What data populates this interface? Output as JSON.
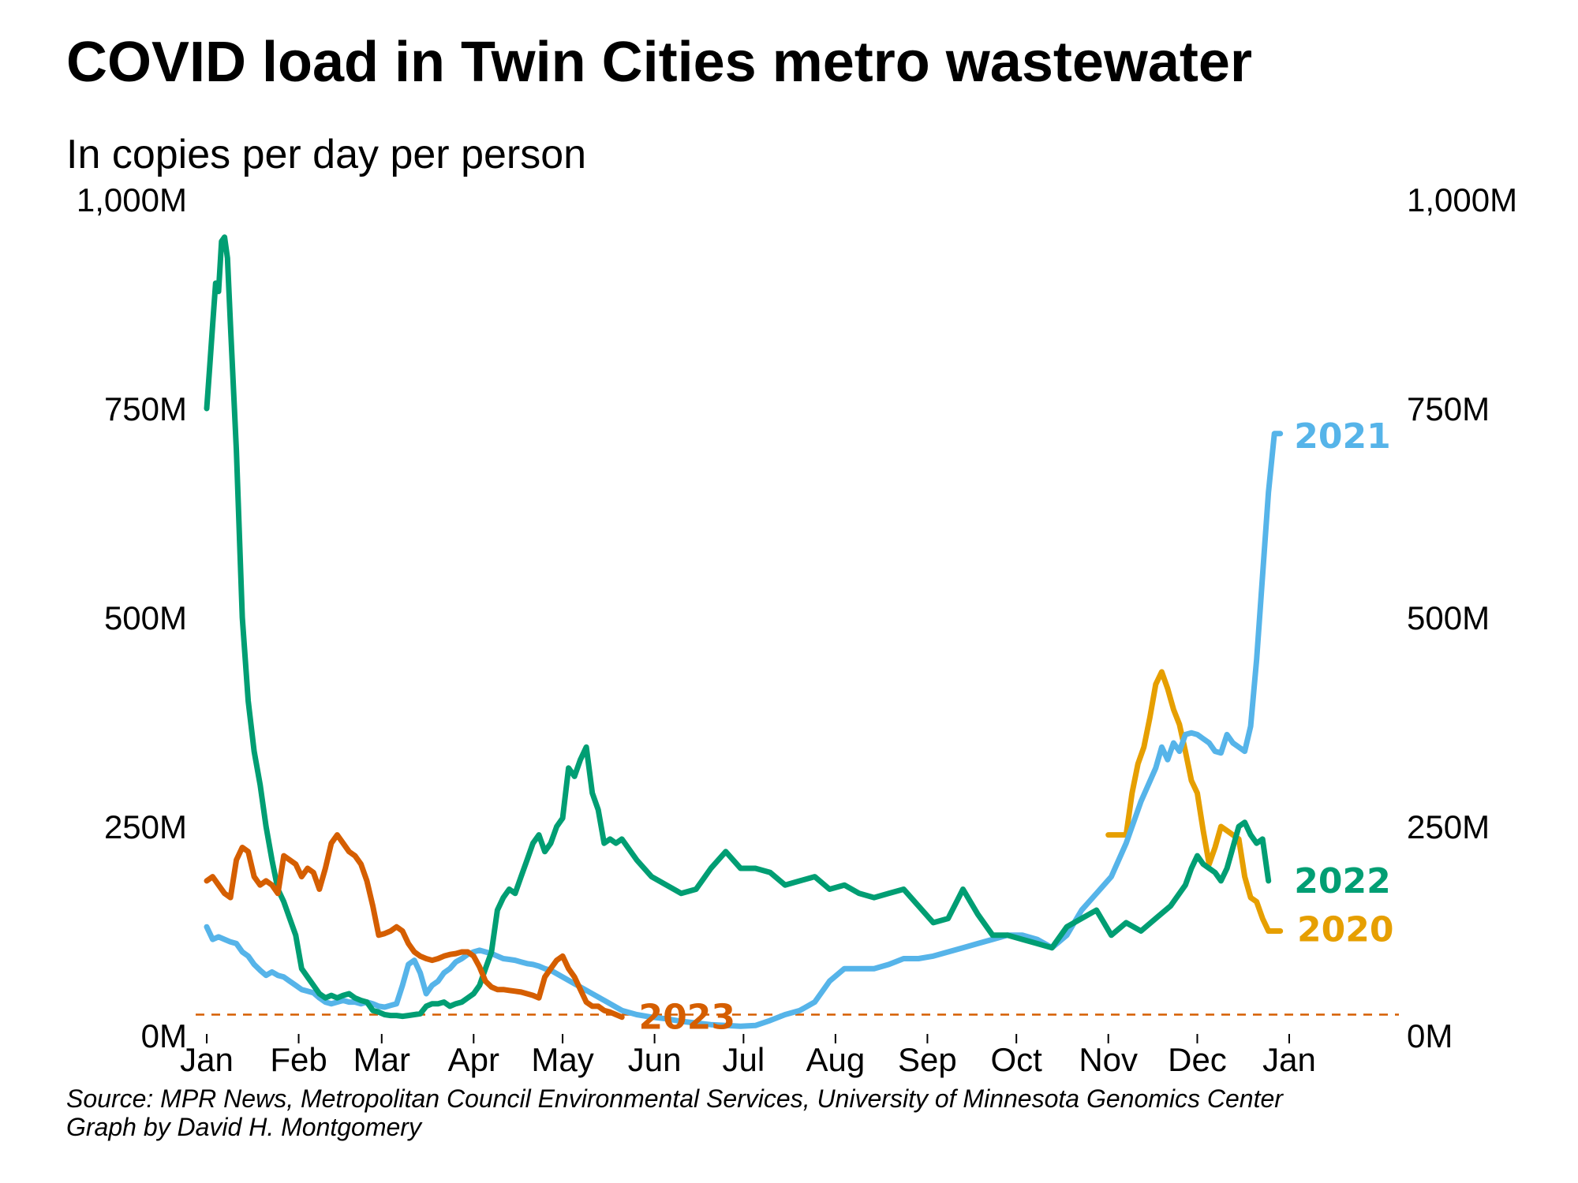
{
  "chart_data": {
    "type": "line",
    "title": "COVID load in Twin Cities metro wastewater",
    "subtitle": "In copies per day per person",
    "ylim": [
      0,
      1000
    ],
    "y_ticks": [
      {
        "value": 0,
        "label": "0M"
      },
      {
        "value": 250,
        "label": "250M"
      },
      {
        "value": 500,
        "label": "500M"
      },
      {
        "value": 750,
        "label": "750M"
      },
      {
        "value": 1000,
        "label": "1,000M"
      }
    ],
    "x_ticks": [
      {
        "day": 0,
        "label": "Jan"
      },
      {
        "day": 31,
        "label": "Feb"
      },
      {
        "day": 59,
        "label": "Mar"
      },
      {
        "day": 90,
        "label": "Apr"
      },
      {
        "day": 120,
        "label": "May"
      },
      {
        "day": 151,
        "label": "Jun"
      },
      {
        "day": 181,
        "label": "Jul"
      },
      {
        "day": 212,
        "label": "Aug"
      },
      {
        "day": 243,
        "label": "Sep"
      },
      {
        "day": 273,
        "label": "Oct"
      },
      {
        "day": 304,
        "label": "Nov"
      },
      {
        "day": 334,
        "label": "Dec"
      },
      {
        "day": 365,
        "label": "Jan"
      }
    ],
    "reference_line": {
      "value": 25,
      "color": "#D55E00"
    },
    "grid": false,
    "series": [
      {
        "name": "2020",
        "color": "#E69F00",
        "x": [
          304,
          306,
          308,
          310,
          312,
          314,
          316,
          318,
          320,
          322,
          324,
          326,
          328,
          330,
          332,
          334,
          336,
          338,
          340,
          342,
          344,
          346,
          348,
          350,
          352,
          354,
          356,
          358,
          360,
          362
        ],
        "y": [
          240,
          240,
          240,
          240,
          290,
          325,
          345,
          380,
          420,
          435,
          415,
          390,
          372,
          340,
          305,
          290,
          245,
          205,
          225,
          250,
          245,
          240,
          235,
          190,
          165,
          160,
          140,
          125,
          125,
          125
        ]
      },
      {
        "name": "2021",
        "color": "#56B4E9",
        "x": [
          0,
          2,
          4,
          6,
          8,
          10,
          12,
          14,
          16,
          18,
          20,
          22,
          24,
          26,
          28,
          30,
          32,
          34,
          36,
          38,
          40,
          42,
          44,
          46,
          48,
          50,
          52,
          54,
          56,
          58,
          60,
          62,
          64,
          66,
          68,
          70,
          72,
          74,
          76,
          78,
          80,
          82,
          84,
          86,
          88,
          90,
          92,
          94,
          96,
          98,
          100,
          102,
          104,
          106,
          108,
          110,
          112,
          114,
          116,
          118,
          120,
          125,
          130,
          135,
          140,
          145,
          150,
          155,
          160,
          165,
          170,
          175,
          180,
          185,
          190,
          195,
          200,
          205,
          210,
          215,
          220,
          225,
          230,
          235,
          240,
          245,
          250,
          255,
          260,
          265,
          270,
          275,
          280,
          285,
          290,
          295,
          300,
          305,
          310,
          315,
          320,
          322,
          324,
          326,
          328,
          330,
          332,
          334,
          336,
          338,
          340,
          342,
          344,
          346,
          348,
          350,
          352,
          354,
          356,
          358,
          360,
          362
        ],
        "y": [
          130,
          115,
          118,
          115,
          112,
          110,
          100,
          95,
          85,
          78,
          72,
          76,
          72,
          70,
          65,
          60,
          55,
          53,
          51,
          45,
          40,
          38,
          40,
          42,
          40,
          40,
          38,
          40,
          38,
          35,
          34,
          36,
          38,
          60,
          85,
          90,
          75,
          50,
          60,
          65,
          75,
          80,
          88,
          92,
          97,
          100,
          102,
          100,
          98,
          95,
          92,
          91,
          90,
          88,
          86,
          85,
          83,
          80,
          78,
          74,
          70,
          60,
          50,
          40,
          30,
          25,
          22,
          20,
          17,
          15,
          13,
          12,
          11,
          12,
          18,
          25,
          30,
          40,
          65,
          80,
          80,
          80,
          85,
          92,
          92,
          95,
          100,
          105,
          110,
          115,
          120,
          120,
          115,
          105,
          120,
          150,
          170,
          190,
          230,
          280,
          320,
          345,
          330,
          350,
          340,
          360,
          362,
          360,
          355,
          350,
          340,
          338,
          360,
          350,
          345,
          340,
          370,
          450,
          550,
          650,
          720,
          720
        ]
      },
      {
        "name": "2022",
        "color": "#009E73",
        "x": [
          0,
          1,
          2,
          3,
          4,
          5,
          6,
          7,
          8,
          10,
          12,
          14,
          16,
          18,
          20,
          22,
          24,
          26,
          28,
          30,
          32,
          34,
          36,
          38,
          40,
          42,
          44,
          46,
          48,
          50,
          52,
          54,
          56,
          58,
          60,
          62,
          64,
          66,
          68,
          70,
          72,
          74,
          76,
          78,
          80,
          82,
          84,
          86,
          88,
          90,
          92,
          94,
          96,
          98,
          100,
          102,
          104,
          106,
          108,
          110,
          112,
          114,
          116,
          118,
          120,
          122,
          124,
          126,
          128,
          130,
          132,
          134,
          136,
          138,
          140,
          145,
          150,
          155,
          160,
          165,
          170,
          175,
          180,
          185,
          190,
          195,
          200,
          205,
          210,
          215,
          220,
          225,
          230,
          235,
          240,
          245,
          250,
          255,
          260,
          265,
          270,
          275,
          280,
          285,
          290,
          295,
          300,
          305,
          310,
          315,
          320,
          325,
          330,
          332,
          334,
          336,
          338,
          340,
          342,
          344,
          346,
          348,
          350,
          352,
          354,
          356,
          358
        ],
        "y": [
          750,
          800,
          850,
          900,
          890,
          950,
          955,
          930,
          850,
          700,
          500,
          400,
          340,
          300,
          250,
          210,
          175,
          160,
          140,
          120,
          80,
          70,
          60,
          50,
          45,
          48,
          45,
          48,
          50,
          45,
          42,
          40,
          30,
          28,
          25,
          24,
          24,
          23,
          24,
          25,
          26,
          35,
          38,
          38,
          40,
          35,
          38,
          40,
          45,
          50,
          60,
          80,
          100,
          150,
          165,
          175,
          170,
          190,
          210,
          230,
          240,
          220,
          230,
          250,
          260,
          320,
          310,
          330,
          345,
          290,
          270,
          230,
          235,
          230,
          235,
          210,
          190,
          180,
          170,
          175,
          200,
          220,
          200,
          200,
          195,
          180,
          185,
          190,
          175,
          180,
          170,
          165,
          170,
          175,
          155,
          135,
          140,
          175,
          145,
          120,
          120,
          115,
          110,
          105,
          130,
          140,
          150,
          120,
          135,
          125,
          140,
          155,
          180,
          200,
          215,
          205,
          200,
          195,
          185,
          200,
          225,
          250,
          255,
          240,
          230,
          235,
          185
        ]
      },
      {
        "name": "2023",
        "color": "#D55E00",
        "x": [
          0,
          2,
          4,
          6,
          8,
          10,
          12,
          14,
          16,
          18,
          20,
          22,
          24,
          26,
          28,
          30,
          32,
          34,
          36,
          38,
          40,
          42,
          44,
          46,
          48,
          50,
          52,
          54,
          56,
          58,
          60,
          62,
          64,
          66,
          68,
          70,
          72,
          74,
          76,
          78,
          80,
          82,
          84,
          86,
          88,
          90,
          92,
          94,
          96,
          98,
          100,
          102,
          104,
          106,
          108,
          110,
          112,
          114,
          116,
          118,
          120,
          122,
          124,
          126,
          128,
          130,
          132,
          134,
          136,
          138,
          140
        ],
        "y": [
          185,
          190,
          180,
          170,
          165,
          210,
          225,
          220,
          190,
          180,
          185,
          180,
          170,
          215,
          210,
          205,
          190,
          200,
          195,
          175,
          200,
          230,
          240,
          230,
          220,
          215,
          205,
          185,
          155,
          120,
          122,
          125,
          130,
          125,
          110,
          100,
          95,
          92,
          90,
          92,
          95,
          97,
          98,
          100,
          100,
          95,
          82,
          65,
          58,
          55,
          55,
          54,
          53,
          52,
          50,
          48,
          45,
          70,
          80,
          90,
          95,
          80,
          70,
          55,
          40,
          35,
          35,
          30,
          28,
          25,
          22
        ]
      }
    ],
    "series_labels": [
      {
        "series": "2021",
        "text": "2021",
        "x": 364,
        "y": 718
      },
      {
        "series": "2022",
        "text": "2022",
        "x": 364,
        "y": 186
      },
      {
        "series": "2020",
        "text": "2020",
        "x": 365,
        "y": 128
      },
      {
        "series": "2023",
        "text": "2023",
        "x": 143,
        "y": 23
      }
    ]
  },
  "source_line1": "Source: MPR News, Metropolitan Council Environmental Services, University of Minnesota Genomics Center",
  "source_line2": "Graph by David H. Montgomery"
}
